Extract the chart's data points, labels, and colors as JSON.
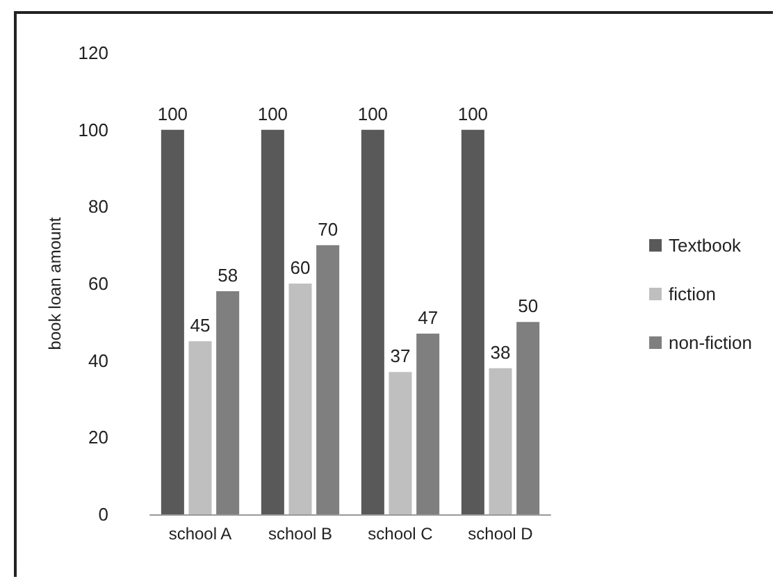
{
  "chart_data": {
    "type": "bar",
    "ylabel": "book loan amount",
    "categories": [
      "school A",
      "school B",
      "school C",
      "school D"
    ],
    "series": [
      {
        "name": "Textbook",
        "color": "#595959",
        "values": [
          100,
          100,
          100,
          100
        ]
      },
      {
        "name": "fiction",
        "color": "#bfbfbf",
        "values": [
          45,
          60,
          37,
          38
        ]
      },
      {
        "name": "non-fiction",
        "color": "#7f7f7f",
        "values": [
          58,
          70,
          47,
          50
        ]
      }
    ],
    "ylim": [
      0,
      120
    ],
    "yticks": [
      0,
      20,
      40,
      60,
      80,
      100,
      120
    ],
    "grid": false,
    "legend": "right",
    "data_labels": true
  }
}
